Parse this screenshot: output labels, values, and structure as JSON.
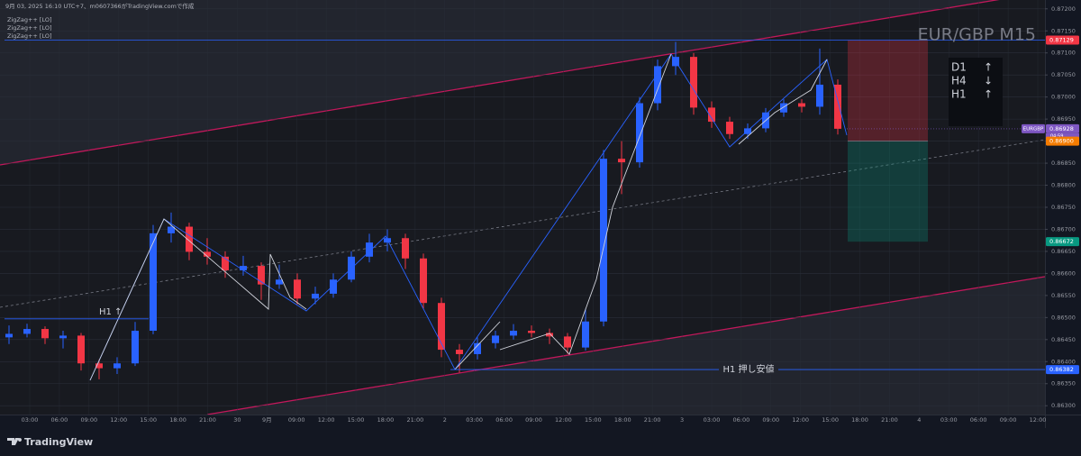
{
  "chart_data": {
    "type": "candlestick",
    "title": "EUR/GBP M15",
    "header": "9月 03, 2025 16:10 UTC+7、m0607366がTradingView.comで作成",
    "indicators": [
      "ZigZag++ [LO]",
      "ZigZag++ [LO]",
      "ZigZag++ [LO]"
    ],
    "categories": [
      "03:00",
      "06:00",
      "09:00",
      "12:00",
      "15:00",
      "18:00",
      "21:00",
      "30",
      "9月",
      "09:00",
      "12:00",
      "15:00",
      "18:00",
      "21:00",
      "2",
      "03:00",
      "06:00",
      "09:00",
      "12:00",
      "15:00",
      "18:00",
      "21:00",
      "3",
      "03:00",
      "06:00",
      "09:00",
      "12:00",
      "15:00",
      "18:00",
      "21:00",
      "4",
      "03:00",
      "06:00",
      "09:00",
      "12:00"
    ],
    "up_color": "#2962ff",
    "down_color": "#f23645",
    "candles": [
      [
        0.86455,
        0.86482,
        0.8644,
        0.86463
      ],
      [
        0.86463,
        0.86486,
        0.86455,
        0.86474
      ],
      [
        0.86474,
        0.8648,
        0.8644,
        0.86453
      ],
      [
        0.86453,
        0.8647,
        0.8643,
        0.86459
      ],
      [
        0.86459,
        0.86465,
        0.8638,
        0.86396
      ],
      [
        0.86396,
        0.86405,
        0.8636,
        0.86385
      ],
      [
        0.86385,
        0.8641,
        0.86372,
        0.86396
      ],
      [
        0.86396,
        0.8649,
        0.8639,
        0.8647
      ],
      [
        0.8647,
        0.8671,
        0.86462,
        0.86691
      ],
      [
        0.86691,
        0.86738,
        0.8667,
        0.86706
      ],
      [
        0.86706,
        0.86715,
        0.8663,
        0.86649
      ],
      [
        0.86649,
        0.8668,
        0.8662,
        0.86638
      ],
      [
        0.86638,
        0.8665,
        0.8659,
        0.86607
      ],
      [
        0.86607,
        0.8664,
        0.86595,
        0.86617
      ],
      [
        0.86617,
        0.86625,
        0.8654,
        0.86575
      ],
      [
        0.86575,
        0.8662,
        0.86565,
        0.86586
      ],
      [
        0.86586,
        0.866,
        0.8653,
        0.86543
      ],
      [
        0.86543,
        0.8657,
        0.8653,
        0.86554
      ],
      [
        0.86554,
        0.866,
        0.86545,
        0.86586
      ],
      [
        0.86586,
        0.8665,
        0.8658,
        0.86638
      ],
      [
        0.86638,
        0.8669,
        0.86625,
        0.8667
      ],
      [
        0.8667,
        0.867,
        0.8665,
        0.8668
      ],
      [
        0.8668,
        0.8669,
        0.8661,
        0.86634
      ],
      [
        0.86634,
        0.86645,
        0.8652,
        0.86533
      ],
      [
        0.86533,
        0.86545,
        0.8641,
        0.86427
      ],
      [
        0.86427,
        0.8644,
        0.86375,
        0.86417
      ],
      [
        0.86417,
        0.86455,
        0.86405,
        0.86442
      ],
      [
        0.86442,
        0.8647,
        0.8643,
        0.86459
      ],
      [
        0.86459,
        0.86485,
        0.8645,
        0.8647
      ],
      [
        0.8647,
        0.86482,
        0.86455,
        0.86465
      ],
      [
        0.86465,
        0.86475,
        0.8644,
        0.86457
      ],
      [
        0.86457,
        0.86465,
        0.86418,
        0.86432
      ],
      [
        0.86432,
        0.8652,
        0.86425,
        0.86491
      ],
      [
        0.86491,
        0.8688,
        0.8648,
        0.8686
      ],
      [
        0.8686,
        0.869,
        0.8678,
        0.86852
      ],
      [
        0.86852,
        0.87,
        0.8684,
        0.86986
      ],
      [
        0.86986,
        0.87085,
        0.8697,
        0.8707
      ],
      [
        0.8707,
        0.87125,
        0.8705,
        0.87091
      ],
      [
        0.87091,
        0.871,
        0.8696,
        0.86976
      ],
      [
        0.86976,
        0.8699,
        0.8693,
        0.86944
      ],
      [
        0.86944,
        0.86955,
        0.86905,
        0.86916
      ],
      [
        0.86916,
        0.8694,
        0.86905,
        0.86929
      ],
      [
        0.86929,
        0.86975,
        0.8692,
        0.86965
      ],
      [
        0.86965,
        0.86995,
        0.86955,
        0.86986
      ],
      [
        0.86986,
        0.86995,
        0.86965,
        0.86978
      ],
      [
        0.86978,
        0.8711,
        0.8696,
        0.87028
      ],
      [
        0.87028,
        0.8704,
        0.86915,
        0.86928
      ]
    ],
    "ylim": [
      0.8628,
      0.8722
    ],
    "yticks": [
      {
        "value": 0.872,
        "label": "0.87200"
      },
      {
        "value": 0.8715,
        "label": "0.87150"
      },
      {
        "value": 0.871,
        "label": "0.87100"
      },
      {
        "value": 0.8705,
        "label": "0.87050"
      },
      {
        "value": 0.87,
        "label": "0.87000"
      },
      {
        "value": 0.8695,
        "label": "0.86950"
      },
      {
        "value": 0.869,
        "label": "0.86900"
      },
      {
        "value": 0.8685,
        "label": "0.86850"
      },
      {
        "value": 0.868,
        "label": "0.86800"
      },
      {
        "value": 0.8675,
        "label": "0.86750"
      },
      {
        "value": 0.867,
        "label": "0.86700"
      },
      {
        "value": 0.8665,
        "label": "0.86650"
      },
      {
        "value": 0.866,
        "label": "0.86600"
      },
      {
        "value": 0.8655,
        "label": "0.86550"
      },
      {
        "value": 0.865,
        "label": "0.86500"
      },
      {
        "value": 0.8645,
        "label": "0.86450"
      },
      {
        "value": 0.864,
        "label": "0.86400"
      },
      {
        "value": 0.8635,
        "label": "0.86350"
      },
      {
        "value": 0.863,
        "label": "0.86300"
      }
    ],
    "grid": true,
    "trend": [
      [
        "D1",
        "↑"
      ],
      [
        "H4",
        "↓"
      ],
      [
        "H1",
        "↑"
      ]
    ],
    "levels": [
      {
        "label": "H1 ↑",
        "value": 0.86497
      },
      {
        "label": "H1 押し安値",
        "value": 0.86382
      }
    ],
    "symbol": "EURGBP",
    "countdown": "04:59",
    "last_price": 0.86928,
    "position": {
      "stop": 0.87129,
      "entry": {
        "value": 0.869,
        "label": "0.86900"
      },
      "target": 0.86672
    },
    "brand": "TradingView"
  }
}
